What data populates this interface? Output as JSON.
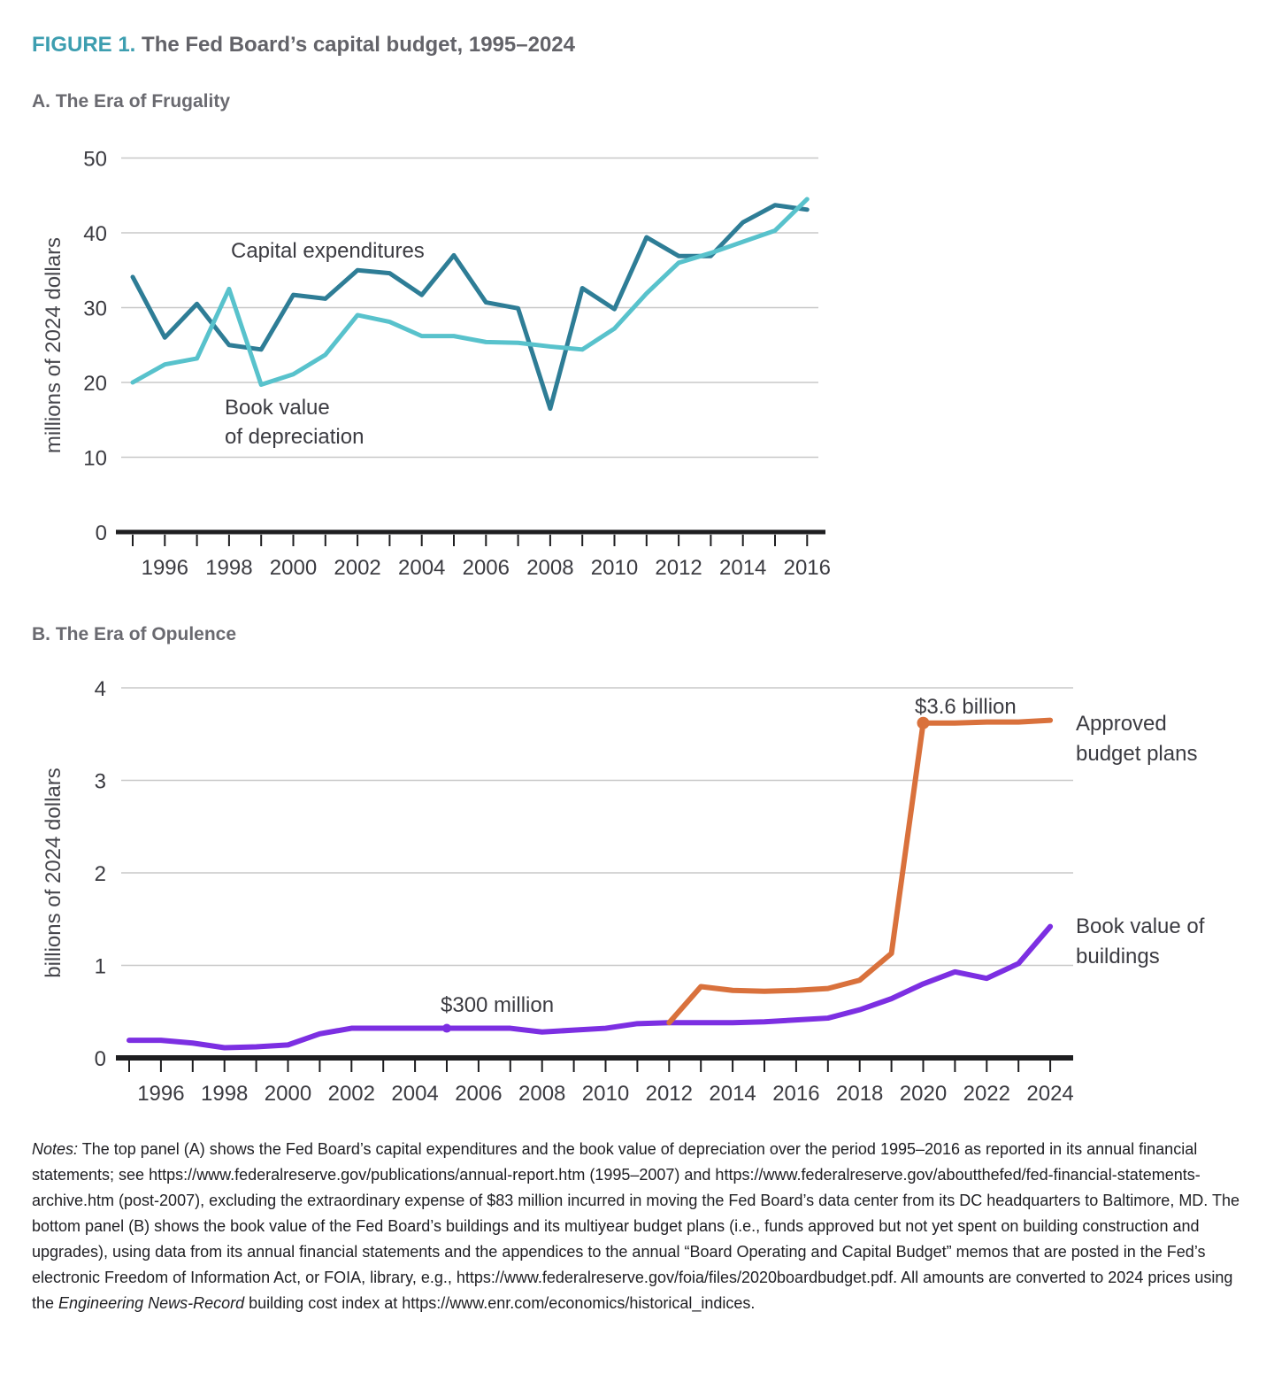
{
  "title": {
    "label": "FIGURE 1.",
    "text": "The Fed Board’s capital budget, 1995–2024"
  },
  "colors": {
    "accent_teal": "#3D9EB0",
    "capital_expenditures": "#2E7D96",
    "depreciation": "#58C2CC",
    "approved_budget": "#D9713C",
    "buildings": "#7C2FE2",
    "grid": "#C8C8C8",
    "axis": "#1E1E20",
    "tick_text": "#3B3B41"
  },
  "chart_data": [
    {
      "type": "line",
      "panel": "A",
      "heading": "A. The Era of Frugality",
      "title": "A. The Era of Frugality",
      "xlabel": "",
      "ylabel": "millions of 2024 dollars",
      "ylim": [
        0,
        50
      ],
      "yticks": [
        0,
        10,
        20,
        30,
        40,
        50
      ],
      "x": [
        1995,
        1996,
        1997,
        1998,
        1999,
        2000,
        2001,
        2002,
        2003,
        2004,
        2005,
        2006,
        2007,
        2008,
        2009,
        2010,
        2011,
        2012,
        2013,
        2014,
        2015,
        2016
      ],
      "xtick_labels": [
        1996,
        1998,
        2000,
        2002,
        2004,
        2006,
        2008,
        2010,
        2012,
        2014,
        2016
      ],
      "grid": true,
      "legend_position": "inline-annotations",
      "series": [
        {
          "name": "Capital expenditures",
          "color_key": "capital_expenditures",
          "values": [
            34.1,
            26.0,
            30.5,
            25.0,
            24.4,
            31.7,
            31.2,
            35.0,
            34.6,
            31.7,
            37.0,
            30.7,
            29.9,
            16.5,
            32.6,
            29.8,
            39.4,
            36.9,
            36.9,
            41.4,
            43.7,
            43.1
          ]
        },
        {
          "name": "Book value of depreciation",
          "color_key": "depreciation",
          "values": [
            20.0,
            22.4,
            23.2,
            32.5,
            19.7,
            21.1,
            23.7,
            29.0,
            28.1,
            26.2,
            26.2,
            25.4,
            25.3,
            24.8,
            24.4,
            27.2,
            31.9,
            36.0,
            37.3,
            38.8,
            40.3,
            44.5
          ]
        }
      ],
      "markers": []
    },
    {
      "type": "line",
      "panel": "B",
      "heading": "B. The Era of Opulence",
      "title": "B. The Era of Opulence",
      "xlabel": "",
      "ylabel": "billions of 2024 dollars",
      "ylim": [
        0,
        4
      ],
      "yticks": [
        0,
        1,
        2,
        3,
        4
      ],
      "x": [
        1995,
        1996,
        1997,
        1998,
        1999,
        2000,
        2001,
        2002,
        2003,
        2004,
        2005,
        2006,
        2007,
        2008,
        2009,
        2010,
        2011,
        2012,
        2013,
        2014,
        2015,
        2016,
        2017,
        2018,
        2019,
        2020,
        2021,
        2022,
        2023,
        2024
      ],
      "xtick_labels": [
        1996,
        1998,
        2000,
        2002,
        2004,
        2006,
        2008,
        2010,
        2012,
        2014,
        2016,
        2018,
        2020,
        2022,
        2024
      ],
      "grid": true,
      "legend_position": "right-annotations",
      "series": [
        {
          "name": "Book value of buildings",
          "color_key": "buildings",
          "values": [
            0.19,
            0.19,
            0.16,
            0.11,
            0.12,
            0.14,
            0.26,
            0.32,
            0.32,
            0.32,
            0.32,
            0.32,
            0.32,
            0.28,
            0.3,
            0.32,
            0.37,
            0.38,
            0.38,
            0.38,
            0.39,
            0.41,
            0.43,
            0.52,
            0.64,
            0.8,
            0.93,
            0.86,
            1.02,
            1.42
          ]
        },
        {
          "name": "Approved budget plans",
          "color_key": "approved_budget",
          "start_year": 2012,
          "values": [
            0.38,
            0.77,
            0.73,
            0.72,
            0.73,
            0.75,
            0.84,
            1.13,
            3.62,
            3.62,
            3.63,
            3.63,
            3.65
          ]
        }
      ],
      "markers": [
        {
          "series": "Book value of buildings",
          "year": 2005,
          "value": 0.32,
          "label": "$300 million",
          "r": 5
        },
        {
          "series": "Approved budget plans",
          "year": 2020,
          "value": 3.62,
          "label": "$3.6 billion",
          "r": 7
        }
      ]
    }
  ],
  "annotations": {
    "capital_expenditures": "Capital expenditures",
    "book_value_line1": "Book value",
    "book_value_line2": "of depreciation",
    "billion_label": "$3.6 billion",
    "approved_line1": "Approved",
    "approved_line2": "budget plans",
    "million_label": "$300 million",
    "buildings_line1": "Book value of",
    "buildings_line2": "buildings"
  },
  "notes": {
    "segments": [
      {
        "italic": true,
        "text": "Notes:"
      },
      {
        "italic": false,
        "text": " The top panel (A) shows the Fed Board’s capital expenditures and the book value of depreciation over the period 1995–2016 as reported in its annual financial statements; see https://www.federalreserve.gov/publications/annual-report.htm (1995–2007) and https://www.federalreserve.gov/aboutthefed/fed-financial-statements-archive.htm (post-2007), excluding the extraordinary expense of $83 million incurred in moving the Fed Board’s data center from its DC headquarters to Baltimore, MD.  The bottom panel (B) shows the book value of the Fed Board’s buildings and its multiyear budget plans (i.e., funds approved but not yet spent on building construction and upgrades), using data from its annual financial statements and the appendices to the annual “Board Operating and Capital Budget” memos that are posted in the Fed’s electronic Freedom of Information Act, or FOIA, library, e.g., https://www.federalreserve.gov/foia/files/2020boardbudget.pdf. All amounts are converted to 2024 prices using the "
      },
      {
        "italic": true,
        "text": "Engineering News-Record"
      },
      {
        "italic": false,
        "text": " building cost index at https://www.enr.com/economics/historical_indices."
      }
    ]
  }
}
